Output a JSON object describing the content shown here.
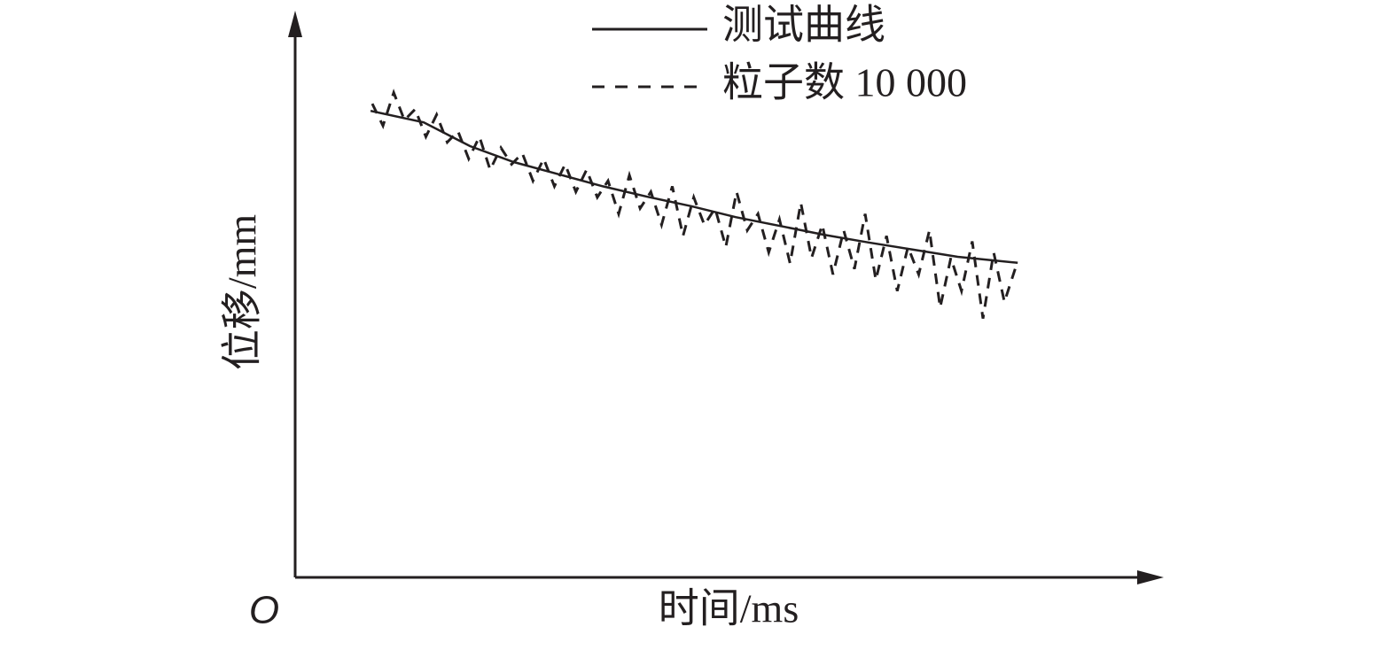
{
  "chart_data": {
    "type": "line",
    "x_label": "时间/ms",
    "y_label": "位移/mm",
    "origin_label": "O",
    "xlim": [
      0,
      100
    ],
    "ylim": [
      0,
      100
    ],
    "series": [
      {
        "name": "测试曲线",
        "color": "#231f20",
        "style": "solid",
        "x": [
          8.8,
          15.0,
          20.4,
          25.5,
          30.7,
          35.9,
          41.1,
          46.2,
          51.4,
          56.6,
          61.7,
          66.9,
          72.1,
          77.3,
          84.3
        ],
        "values": [
          84.7,
          82.6,
          78.3,
          75.4,
          73.2,
          71.0,
          69.1,
          67.4,
          65.4,
          63.8,
          62.2,
          60.8,
          59.5,
          58.2,
          57.1
        ]
      },
      {
        "name": "粒子数 10 000",
        "color": "#231f20",
        "style": "dashed",
        "x": [
          9,
          10.25,
          11.5,
          12.75,
          14,
          15.25,
          16.5,
          17.75,
          19,
          20.25,
          21.5,
          22.75,
          24,
          25.25,
          26.5,
          27.75,
          29,
          30.25,
          31.5,
          32.75,
          34,
          35.25,
          36.5,
          37.75,
          39,
          40.25,
          41.5,
          42.75,
          44,
          45.25,
          46.5,
          47.75,
          49,
          50.25,
          51.5,
          52.75,
          54,
          55.25,
          56.5,
          57.75,
          59,
          60.25,
          61.5,
          62.75,
          64,
          65.25,
          66.5,
          67.75,
          69,
          70.25,
          71.5,
          72.75,
          74,
          75.25,
          76.5,
          77.75,
          79,
          80.25,
          81.5,
          82.75,
          84
        ],
        "values": [
          86,
          82,
          88,
          83,
          85,
          80,
          84,
          79,
          81,
          76,
          80,
          74,
          78,
          75,
          77,
          72,
          76,
          71,
          75,
          70,
          74,
          69,
          72,
          66,
          73,
          67,
          70,
          64,
          71,
          62,
          69,
          64,
          67,
          60,
          70,
          63,
          66,
          59,
          65,
          57,
          68,
          58,
          64,
          55,
          63,
          56,
          66,
          54,
          62,
          52,
          60,
          55,
          63,
          49,
          58,
          52,
          61,
          47,
          59,
          50,
          56
        ]
      }
    ]
  }
}
